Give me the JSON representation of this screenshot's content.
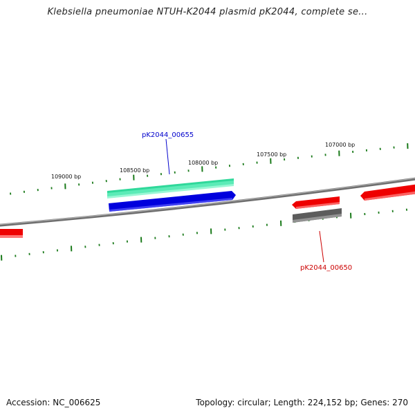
{
  "title": "Klebsiella pneumoniae NTUH-K2044 plasmid pK2044, complete se...",
  "footer": {
    "accession": "Accession: NC_006625",
    "summary": "Topology: circular; Length: 224,152 bp; Genes: 270"
  },
  "ruler": {
    "labels": [
      "109000 bp",
      "108500 bp",
      "108000 bp",
      "107500 bp",
      "107000 bp"
    ]
  },
  "genes": [
    {
      "name": "pK2044_00655",
      "color": "#0000cc"
    },
    {
      "name": "pK2044_00650",
      "color": "#cc0000"
    }
  ],
  "colors": {
    "backbone": "#808080",
    "cds_red": "#ff0000",
    "cds_blue": "#0000ee",
    "cds_green": "#33e8a0",
    "cds_gray": "#666666",
    "tick": "#1a7a1a"
  }
}
